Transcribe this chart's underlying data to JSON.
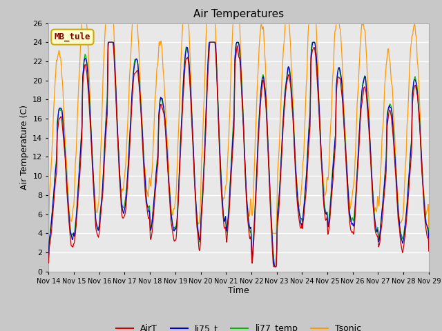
{
  "title": "Air Temperatures",
  "xlabel": "Time",
  "ylabel": "Air Temperature (C)",
  "ylim": [
    0,
    26
  ],
  "yticks": [
    0,
    2,
    4,
    6,
    8,
    10,
    12,
    14,
    16,
    18,
    20,
    22,
    24,
    26
  ],
  "x_labels": [
    "Nov 14",
    "Nov 15",
    "Nov 16",
    "Nov 17",
    "Nov 18",
    "Nov 19",
    "Nov 20",
    "Nov 21",
    "Nov 22",
    "Nov 23",
    "Nov 24",
    "Nov 25",
    "Nov 26",
    "Nov 27",
    "Nov 28",
    "Nov 29"
  ],
  "colors": {
    "AirT": "#cc0000",
    "li75_t": "#0000cc",
    "li77_temp": "#00bb00",
    "Tsonic": "#ff9900"
  },
  "annotation_text": "MB_tule",
  "annotation_bg": "#ffffcc",
  "annotation_border": "#ccaa00",
  "annotation_text_color": "#880000",
  "plot_bg": "#e8e8e8",
  "fig_bg": "#c8c8c8",
  "n_days": 15,
  "pts_per_day": 96,
  "seed": 12345
}
